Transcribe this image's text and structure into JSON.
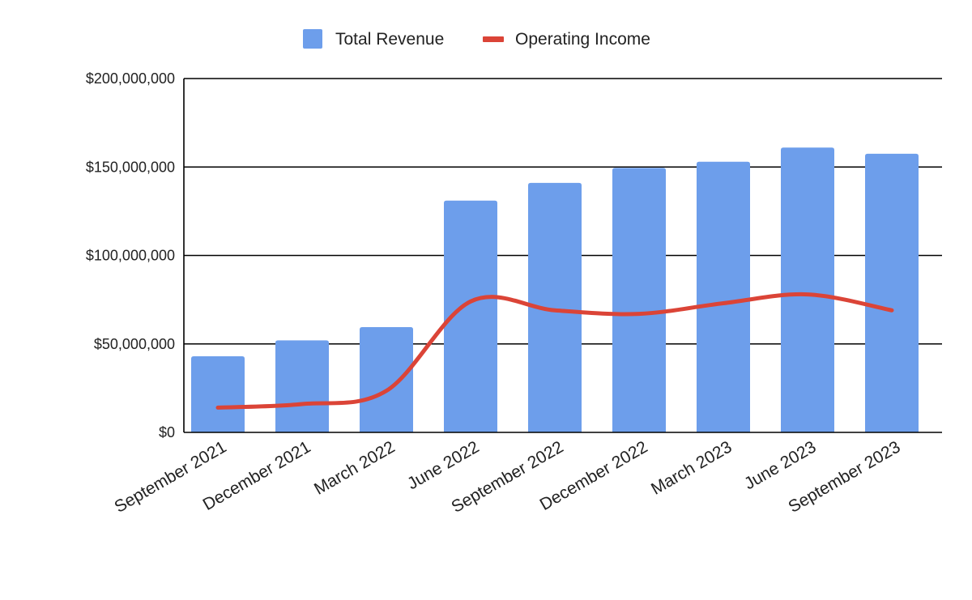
{
  "chart_data": {
    "type": "bar",
    "title": "",
    "xlabel": "",
    "ylabel": "",
    "categories": [
      "September 2021",
      "December 2021",
      "March 2022",
      "June 2022",
      "September 2022",
      "December 2022",
      "March 2023",
      "June 2023",
      "September 2023"
    ],
    "series": [
      {
        "name": "Total Revenue",
        "type": "bar",
        "color": "#6d9eeb",
        "values": [
          43000000,
          52000000,
          59500000,
          131000000,
          141000000,
          149500000,
          153000000,
          161000000,
          157500000
        ]
      },
      {
        "name": "Operating Income",
        "type": "line",
        "color": "#db4437",
        "smooth": true,
        "values": [
          14000000,
          16000000,
          23500000,
          74000000,
          69000000,
          67000000,
          73000000,
          78000000,
          69000000
        ]
      }
    ],
    "ylim": [
      0,
      200000000
    ],
    "yticks": [
      0,
      50000000,
      100000000,
      150000000,
      200000000
    ],
    "ytick_labels": [
      "$0",
      "$50,000,000",
      "$100,000,000",
      "$150,000,000",
      "$200,000,000"
    ],
    "grid": true,
    "legend_position": "top-center"
  }
}
